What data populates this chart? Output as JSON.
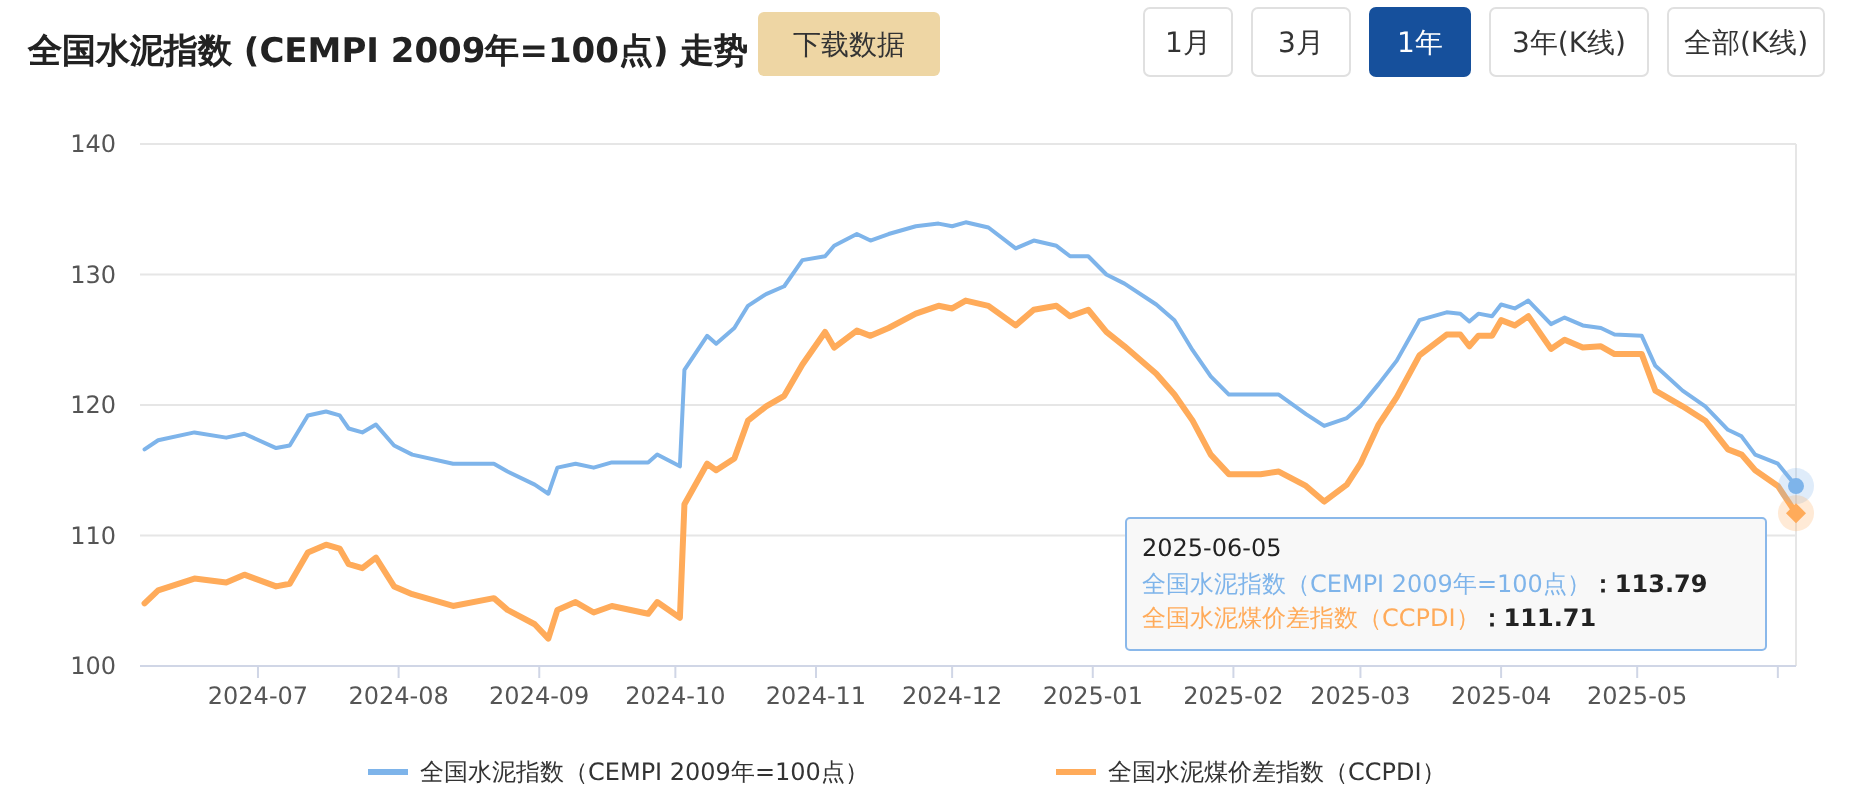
{
  "chart_data": {
    "type": "line",
    "title": "全国水泥指数 (CEMPI 2009年=100点) 走势",
    "annotations": [
      "下载数据",
      "1月",
      "3月",
      "1年",
      "3年(K线)",
      "全部(K线)",
      "2025-06-05",
      "全国水泥指数（CEMPI 2009年=100点）：113.79",
      "全国水泥煤价差指数（CCPDI）：111.71"
    ],
    "x": [
      "2024-06-06",
      "2024-06-09",
      "2024-06-17",
      "2024-06-24",
      "2024-06-28",
      "2024-07-05",
      "2024-07-08",
      "2024-07-12",
      "2024-07-16",
      "2024-07-19",
      "2024-07-21",
      "2024-07-24",
      "2024-07-27",
      "2024-07-31",
      "2024-08-04",
      "2024-08-13",
      "2024-08-22",
      "2024-08-25",
      "2024-08-31",
      "2024-09-03",
      "2024-09-05",
      "2024-09-09",
      "2024-09-13",
      "2024-09-17",
      "2024-09-25",
      "2024-09-27",
      "2024-10-02",
      "2024-10-03",
      "2024-10-08",
      "2024-10-10",
      "2024-10-14",
      "2024-10-17",
      "2024-10-21",
      "2024-10-25",
      "2024-10-29",
      "2024-11-03",
      "2024-11-05",
      "2024-11-10",
      "2024-11-13",
      "2024-11-17",
      "2024-11-23",
      "2024-11-28",
      "2024-12-01",
      "2024-12-04",
      "2024-12-09",
      "2024-12-15",
      "2024-12-19",
      "2024-12-24",
      "2024-12-27",
      "2024-12-31",
      "2025-01-04",
      "2025-01-08",
      "2025-01-15",
      "2025-01-19",
      "2025-01-23",
      "2025-01-27",
      "2025-01-31",
      "2025-02-07",
      "2025-02-11",
      "2025-02-17",
      "2025-02-21",
      "2025-02-26",
      "2025-03-01",
      "2025-03-05",
      "2025-03-09",
      "2025-03-14",
      "2025-03-20",
      "2025-03-23",
      "2025-03-25",
      "2025-03-27",
      "2025-03-30",
      "2025-04-01",
      "2025-04-04",
      "2025-04-07",
      "2025-04-12",
      "2025-04-15",
      "2025-04-19",
      "2025-04-23",
      "2025-04-26",
      "2025-05-02",
      "2025-05-05",
      "2025-05-11",
      "2025-05-16",
      "2025-05-21",
      "2025-05-24",
      "2025-05-27",
      "2025-06-01",
      "2025-06-05"
    ],
    "series": [
      {
        "name": "全国水泥指数（CEMPI 2009年=100点）",
        "color": "#7eb4ea",
        "values": [
          116.6,
          117.3,
          117.9,
          117.5,
          117.8,
          116.7,
          116.9,
          119.2,
          119.5,
          119.2,
          118.2,
          117.9,
          118.5,
          116.9,
          116.2,
          115.5,
          115.5,
          114.9,
          113.9,
          113.2,
          115.2,
          115.5,
          115.2,
          115.6,
          115.6,
          116.2,
          115.3,
          122.7,
          125.3,
          124.7,
          125.9,
          127.6,
          128.5,
          129.1,
          131.1,
          131.4,
          132.2,
          133.1,
          132.6,
          133.1,
          133.7,
          133.9,
          133.7,
          134.0,
          133.6,
          132.0,
          132.6,
          132.2,
          131.4,
          131.4,
          130.0,
          129.3,
          127.7,
          126.5,
          124.2,
          122.2,
          120.8,
          120.8,
          120.8,
          119.3,
          118.4,
          119.0,
          119.9,
          121.6,
          123.4,
          126.5,
          127.1,
          127.0,
          126.4,
          127.0,
          126.8,
          127.7,
          127.4,
          128.0,
          126.2,
          126.7,
          126.1,
          125.9,
          125.4,
          125.3,
          123.0,
          121.1,
          119.9,
          118.1,
          117.6,
          116.2,
          115.5,
          113.79
        ]
      },
      {
        "name": "全国水泥煤价差指数（CCPDI）",
        "color": "#ffab5a",
        "values": [
          104.8,
          105.8,
          106.7,
          106.4,
          107.0,
          106.1,
          106.3,
          108.7,
          109.3,
          109.0,
          107.8,
          107.5,
          108.3,
          106.1,
          105.5,
          104.6,
          105.2,
          104.3,
          103.2,
          102.1,
          104.3,
          104.9,
          104.1,
          104.6,
          104.0,
          104.9,
          103.7,
          112.4,
          115.5,
          115.0,
          115.9,
          118.8,
          119.9,
          120.7,
          123.1,
          125.6,
          124.4,
          125.7,
          125.3,
          125.9,
          127.0,
          127.6,
          127.4,
          128.0,
          127.6,
          126.1,
          127.3,
          127.6,
          126.8,
          127.3,
          125.6,
          124.5,
          122.4,
          120.8,
          118.8,
          116.2,
          114.7,
          114.7,
          114.9,
          113.8,
          112.6,
          113.9,
          115.5,
          118.5,
          120.6,
          123.8,
          125.4,
          125.4,
          124.5,
          125.3,
          125.3,
          126.5,
          126.1,
          126.8,
          124.3,
          125.0,
          124.4,
          124.5,
          123.9,
          123.9,
          121.1,
          119.9,
          118.8,
          116.6,
          116.2,
          115.0,
          113.8,
          111.71
        ]
      }
    ],
    "xlim": [
      "2024-06-05",
      "2025-06-05"
    ],
    "xticks": [
      {
        "value": "2024-07-01",
        "label": "2024-07"
      },
      {
        "value": "2024-08-01",
        "label": "2024-08"
      },
      {
        "value": "2024-09-01",
        "label": "2024-09"
      },
      {
        "value": "2024-10-01",
        "label": "2024-10"
      },
      {
        "value": "2024-11-01",
        "label": "2024-11"
      },
      {
        "value": "2024-12-01",
        "label": "2024-12"
      },
      {
        "value": "2025-01-01",
        "label": "2025-01"
      },
      {
        "value": "2025-02-01",
        "label": "2025-02"
      },
      {
        "value": "2025-03-01",
        "label": "2025-03"
      },
      {
        "value": "2025-04-01",
        "label": "2025-04"
      },
      {
        "value": "2025-05-01",
        "label": "2025-05"
      },
      {
        "value": "2025-06-01",
        "label": null
      }
    ],
    "ylim": [
      100,
      140
    ],
    "yticks": [
      100,
      110,
      120,
      130,
      140
    ],
    "grid": "y",
    "legend": "bottom",
    "marker": "none",
    "line_style": "solid"
  }
}
